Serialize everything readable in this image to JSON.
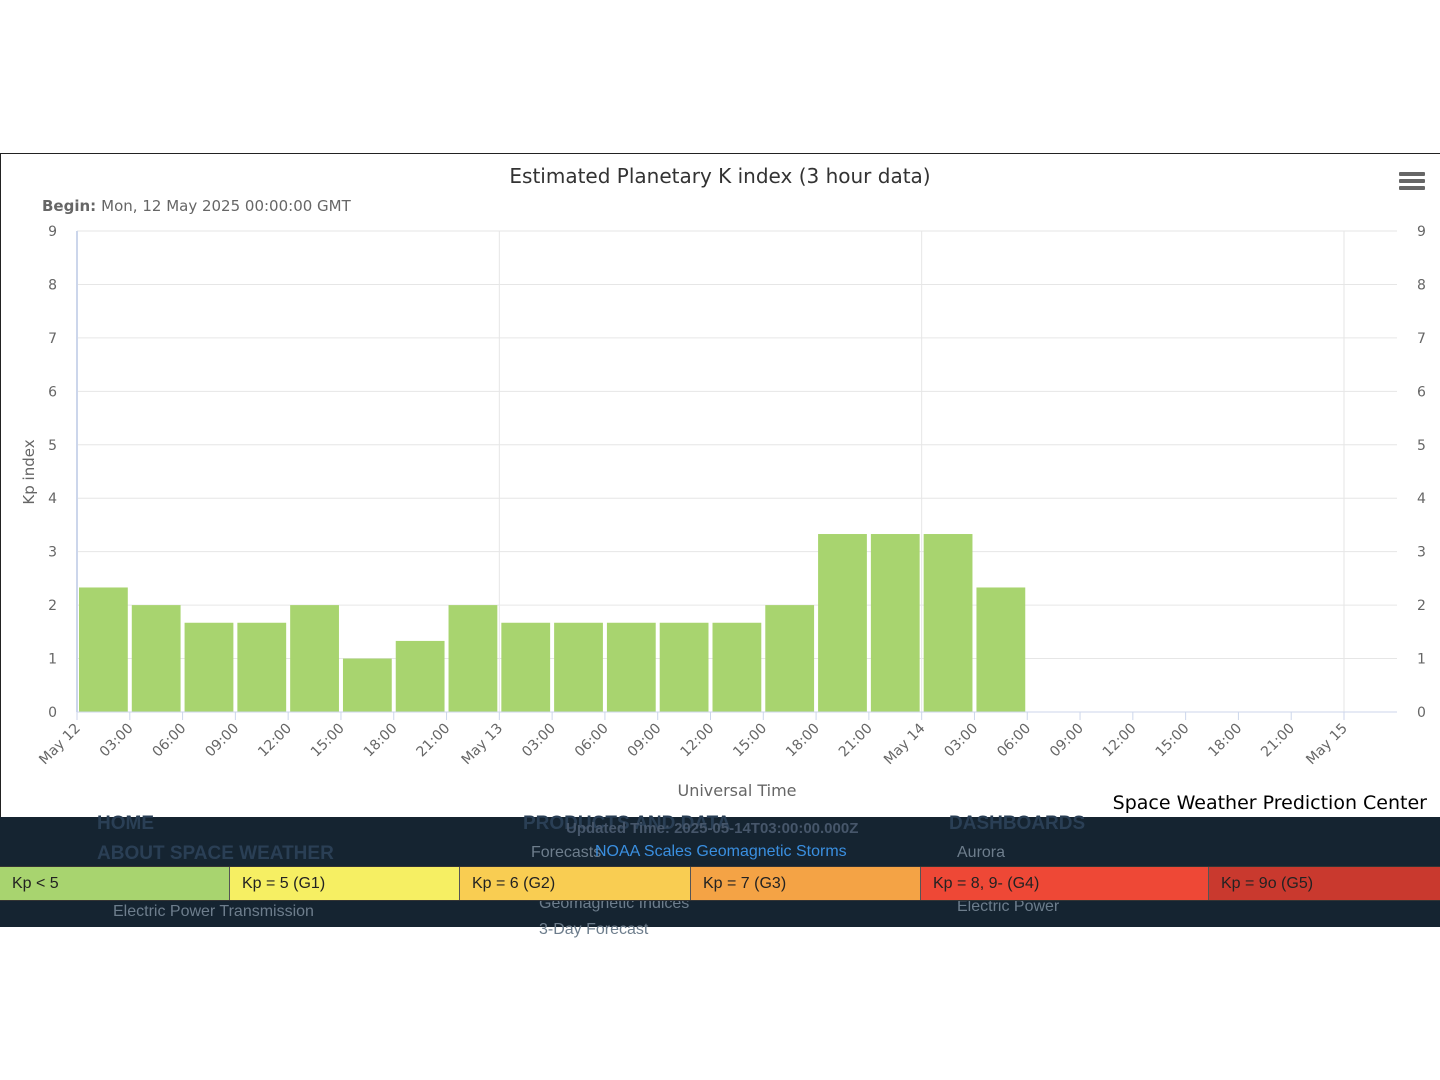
{
  "chart_data": {
    "type": "bar",
    "title": "Estimated Planetary K index (3 hour data)",
    "subtitle_label": "Begin:",
    "subtitle_value": "Mon, 12 May 2025 00:00:00 GMT",
    "ylabel": "Kp index",
    "xlabel": "Universal Time",
    "ylim": [
      0,
      9
    ],
    "yticks": [
      "0",
      "1",
      "2",
      "3",
      "4",
      "5",
      "6",
      "7",
      "8",
      "9"
    ],
    "xtick_labels": [
      "May 12",
      "03:00",
      "06:00",
      "09:00",
      "12:00",
      "15:00",
      "18:00",
      "21:00",
      "May 13",
      "03:00",
      "06:00",
      "09:00",
      "12:00",
      "15:00",
      "18:00",
      "21:00",
      "May 14",
      "03:00",
      "06:00",
      "09:00",
      "12:00",
      "15:00",
      "18:00",
      "21:00",
      "May 15"
    ],
    "series": [
      {
        "values": [
          2.33,
          2.0,
          1.67,
          1.67,
          2.0,
          1.0,
          1.33,
          2.0,
          1.67,
          1.67,
          1.67,
          1.67,
          1.67,
          2.0,
          3.33,
          3.33,
          3.33,
          2.33
        ]
      }
    ],
    "bar_color": "#a8d46f",
    "grid": true
  },
  "credit": "Space Weather Prediction Center",
  "footer": {
    "home": "HOME",
    "about": "ABOUT SPACE WEATHER",
    "products": "PRODUCTS AND DATA",
    "dashboards": "DASHBOARDS",
    "updated": "Updated Time: 2025-05-14T03:00:00.000Z",
    "forecasts": "Forecasts",
    "aurora": "Aurora",
    "scales_link": "NOAA Scales Geomagnetic Storms",
    "elec_transmission": "Electric Power Transmission",
    "geomag_indices": "Geomagnetic Indices",
    "elec_power": "Electric Power",
    "three_day": "3-Day Forecast"
  },
  "kp_scale": [
    {
      "label": "Kp < 5",
      "color": "#a8d46f"
    },
    {
      "label": "Kp = 5 (G1)",
      "color": "#f6ef63"
    },
    {
      "label": "Kp = 6 (G2)",
      "color": "#f9cd52"
    },
    {
      "label": "Kp = 7 (G3)",
      "color": "#f4a345"
    },
    {
      "label": "Kp = 8, 9- (G4)",
      "color": "#ee4836"
    },
    {
      "label": "Kp = 9o (G5)",
      "color": "#c9392e"
    }
  ]
}
